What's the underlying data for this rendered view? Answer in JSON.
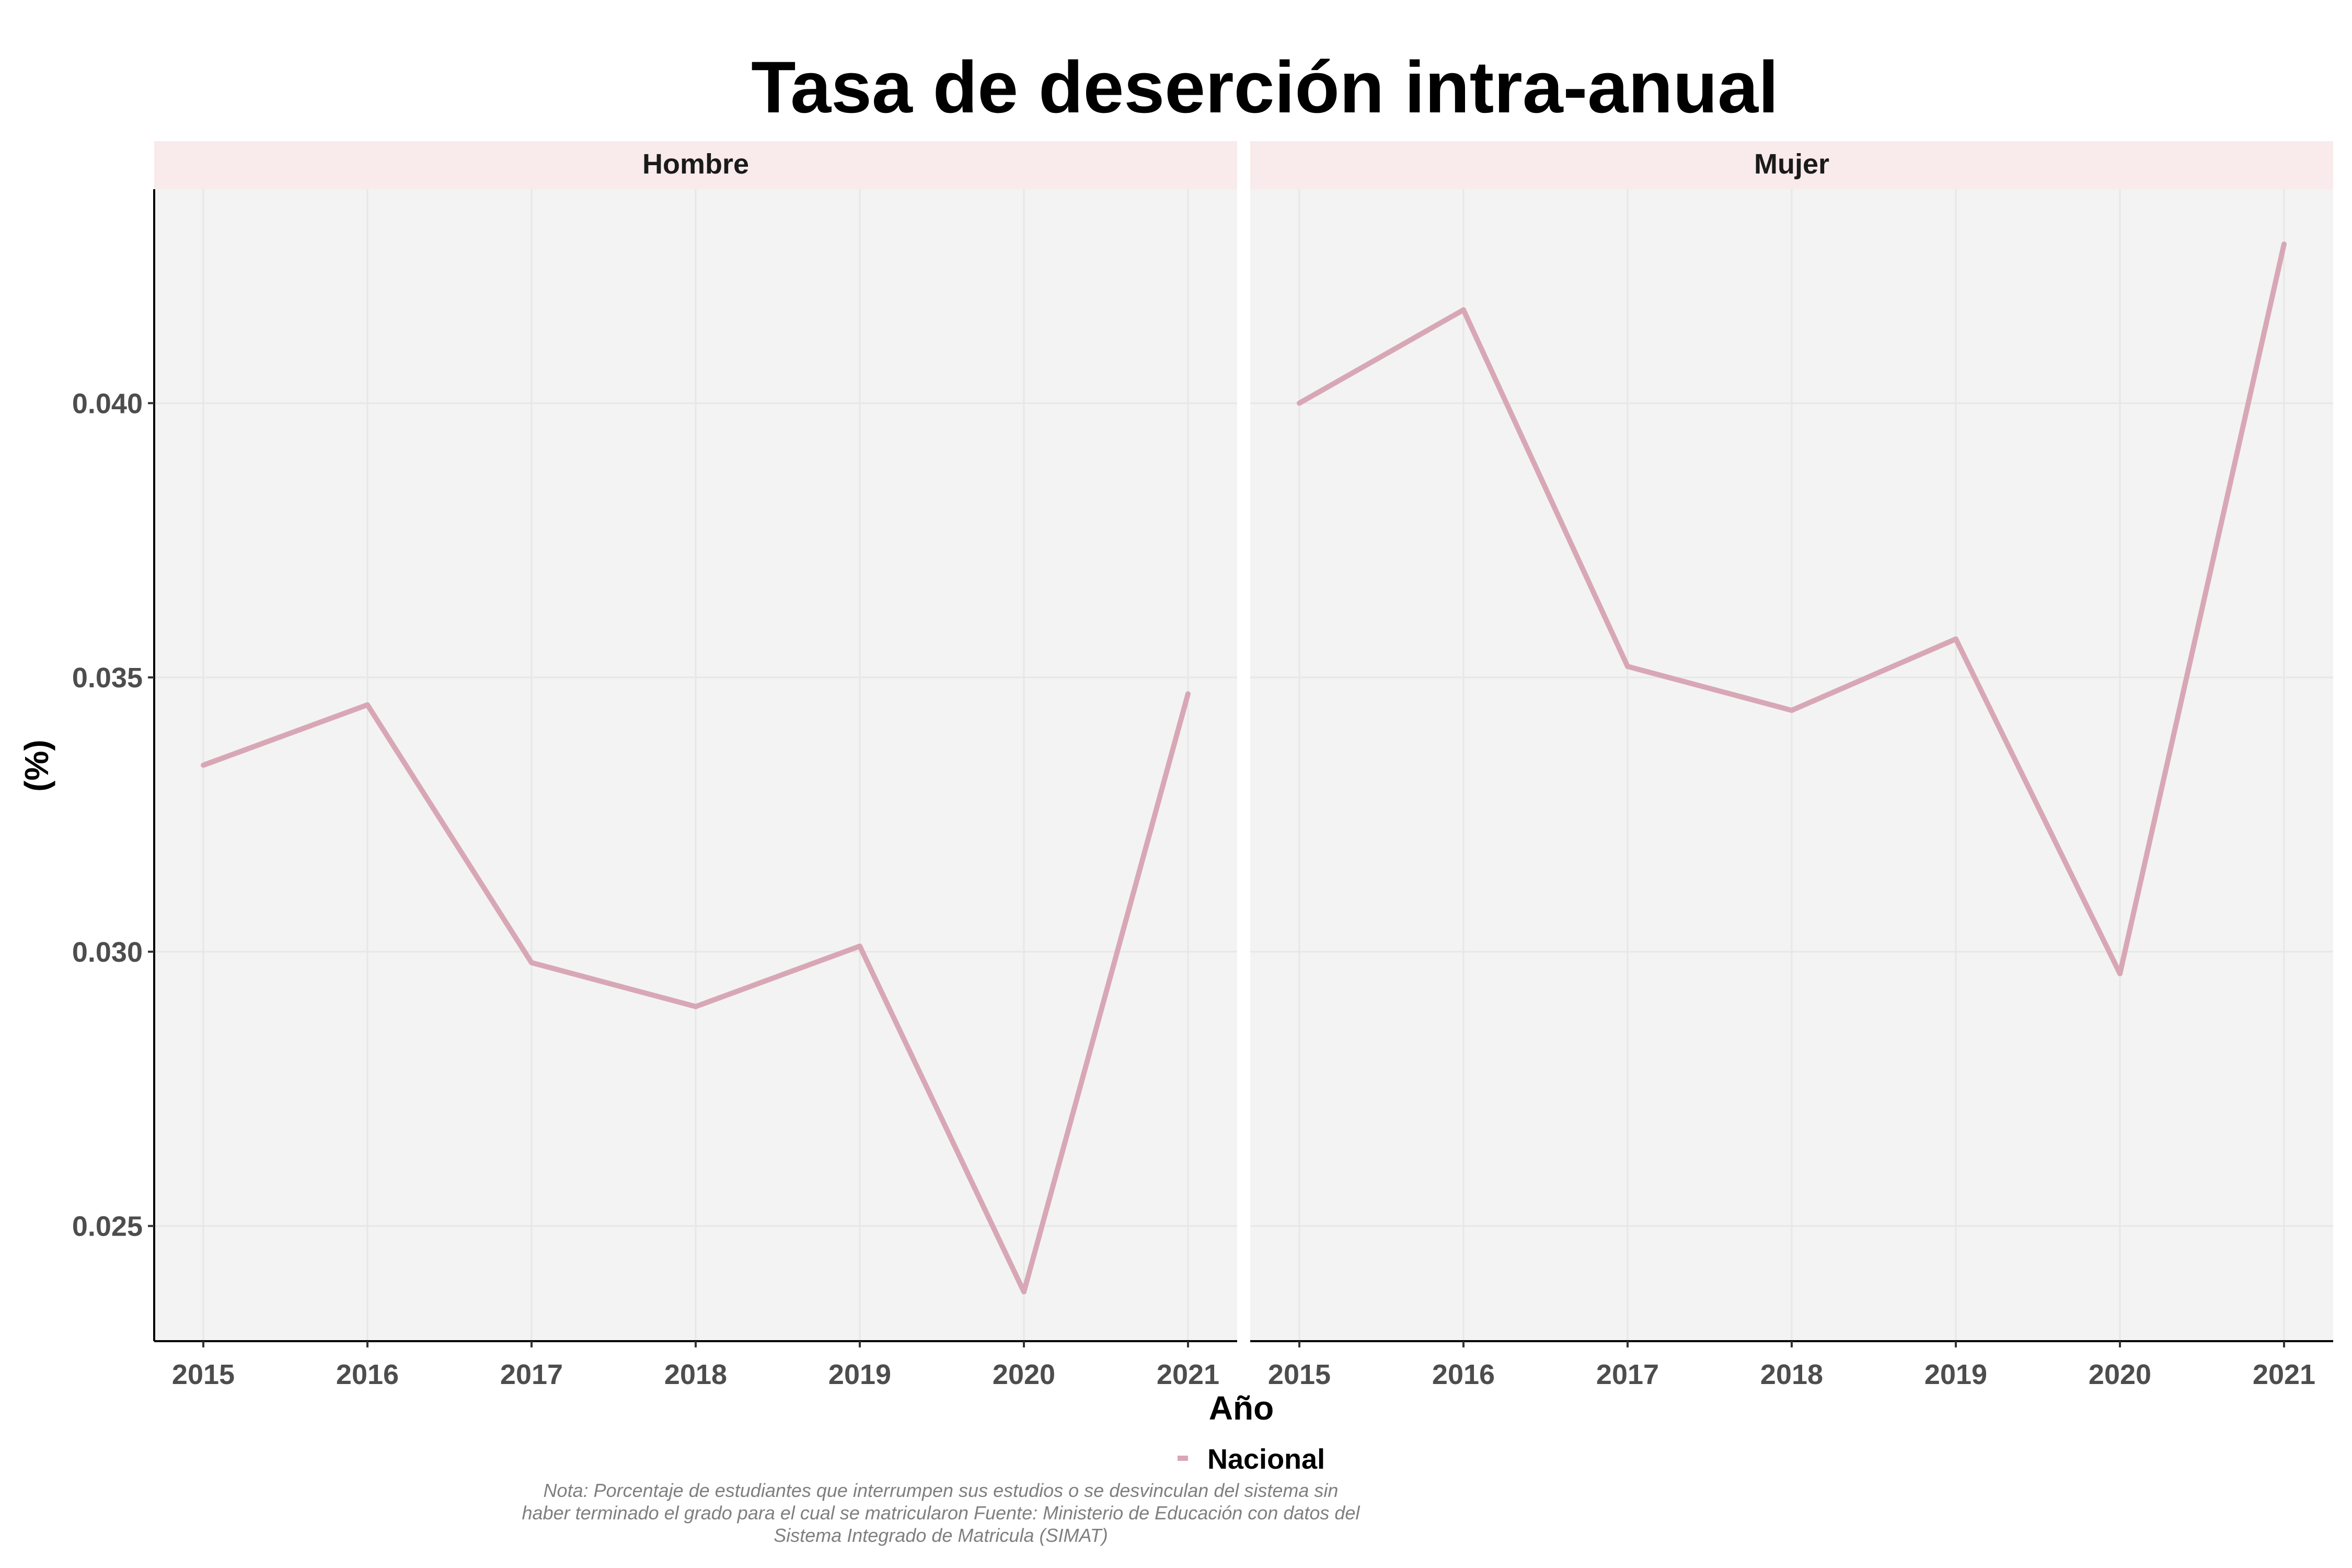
{
  "chart_data": {
    "type": "line",
    "title": "Tasa de deserción intra-anual",
    "xlabel": "Año",
    "ylabel": "(%)",
    "x": [
      "2015",
      "2016",
      "2017",
      "2018",
      "2019",
      "2020",
      "2021"
    ],
    "yticks": [
      "0.025",
      "0.030",
      "0.035",
      "0.040"
    ],
    "ylim": [
      0.0229,
      0.0439
    ],
    "grid": true,
    "legend_position": "bottom",
    "colors": {
      "line": "#d8a7b6",
      "panel_bg": "#f3f3f3",
      "strip_bg": "#f9eaeb",
      "grid": "#e7e7e7"
    },
    "legend": [
      {
        "name": "Nacional",
        "color": "#d8a7b6"
      }
    ],
    "panels": [
      {
        "label": "Hombre",
        "series": [
          {
            "name": "Nacional",
            "values": [
              0.0334,
              0.0345,
              0.0298,
              0.029,
              0.0301,
              0.0238,
              0.0347
            ]
          }
        ]
      },
      {
        "label": "Mujer",
        "series": [
          {
            "name": "Nacional",
            "values": [
              0.04,
              0.0417,
              0.0352,
              0.0344,
              0.0357,
              0.0296,
              0.0429
            ]
          }
        ]
      }
    ],
    "caption": [
      "Nota: Porcentaje de estudiantes que interrumpen sus estudios o se desvinculan del sistema sin",
      "haber terminado el grado para el cual se matricularon Fuente: Ministerio de Educación con datos del",
      "Sistema Integrado de Matricula (SIMAT)"
    ]
  }
}
